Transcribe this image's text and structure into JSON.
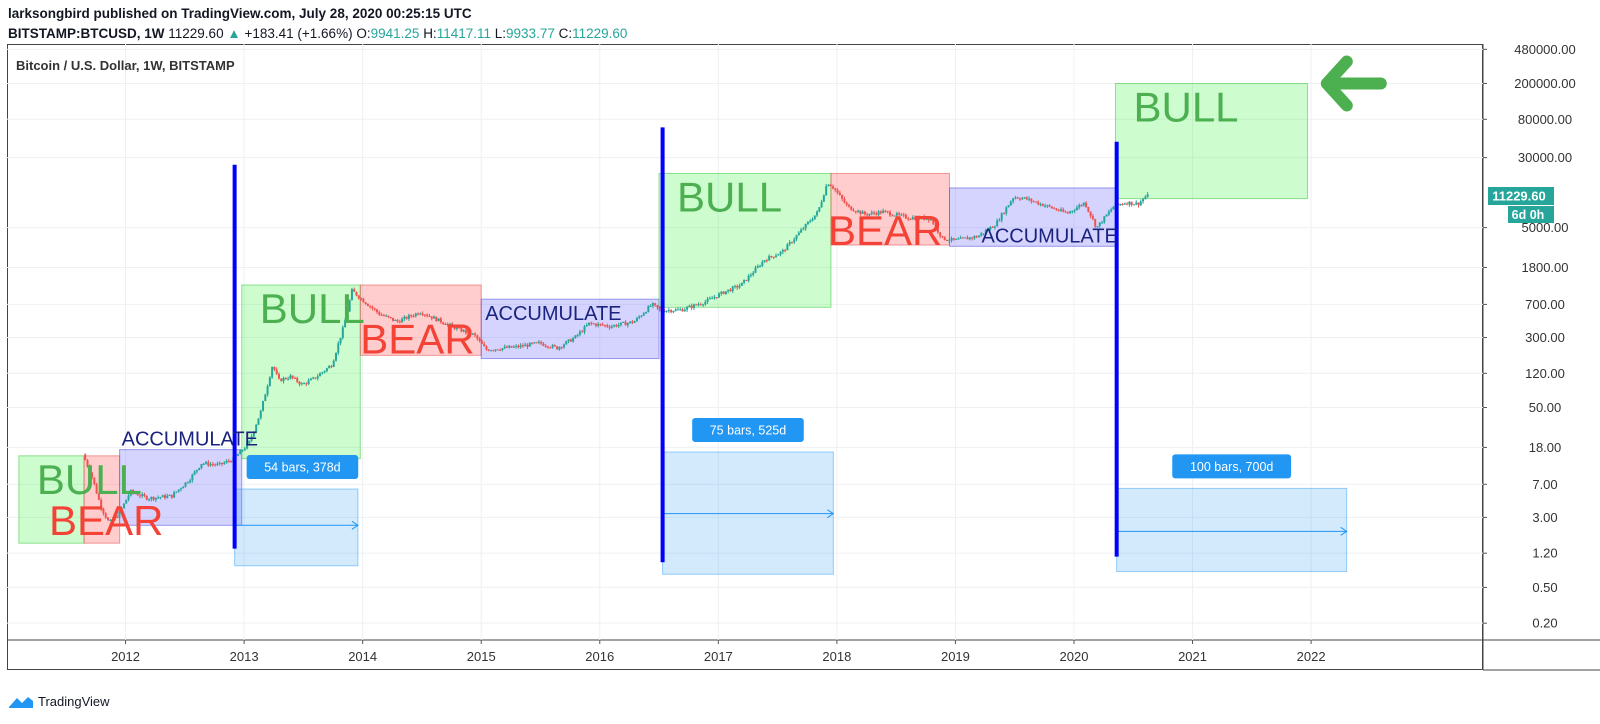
{
  "header": {
    "line1": "larksongbird published on TradingView.com, July 28, 2020 00:25:15 UTC",
    "symbol": "BITSTAMP:BTCUSD, 1W",
    "last": "11229.60",
    "change": "+183.41 (+1.66%)",
    "o_label": "O:",
    "o_value": "9941.25",
    "h_label": "H:",
    "h_value": "11417.11",
    "l_label": "L:",
    "l_value": "9933.77",
    "c_label": "C:",
    "c_value": "11229.60"
  },
  "footer": {
    "brand": "TradingView"
  },
  "colors": {
    "bull": "#4caf50",
    "bear": "#f44336",
    "accumulate": "#1a237e",
    "cycle_line": "#0000ff",
    "measure": "#2196f3",
    "price_badge": "#26a69a",
    "up_candle": "#26a69a",
    "down_candle": "#ef5350"
  },
  "chart_data": {
    "type": "candlestick",
    "title": "Bitcoin / U.S. Dollar, 1W, BITSTAMP",
    "x_axis": {
      "type": "time",
      "range": [
        2011.0,
        2023.45
      ],
      "ticks": [
        "2012",
        "2013",
        "2014",
        "2015",
        "2016",
        "2017",
        "2018",
        "2019",
        "2020",
        "2021",
        "2022"
      ]
    },
    "y_axis": {
      "scale": "log",
      "range": [
        0.13,
        550000
      ],
      "ticks": [
        "480000.00",
        "200000.00",
        "80000.00",
        "30000.00",
        "11229.60",
        "5000.00",
        "1800.00",
        "700.00",
        "300.00",
        "120.00",
        "50.00",
        "18.00",
        "7.00",
        "3.00",
        "1.20",
        "0.50",
        "0.20"
      ],
      "current_price_label": "11229.60",
      "countdown_label": "6d 0h"
    },
    "price_path": [
      [
        2011.65,
        15
      ],
      [
        2011.72,
        9
      ],
      [
        2011.8,
        4
      ],
      [
        2011.87,
        2.6
      ],
      [
        2011.95,
        3.2
      ],
      [
        2012.05,
        5.8
      ],
      [
        2012.2,
        4.9
      ],
      [
        2012.4,
        5.2
      ],
      [
        2012.55,
        8
      ],
      [
        2012.65,
        12
      ],
      [
        2012.8,
        11.5
      ],
      [
        2012.92,
        13.4
      ],
      [
        2013.05,
        20
      ],
      [
        2013.15,
        45
      ],
      [
        2013.25,
        150
      ],
      [
        2013.3,
        100
      ],
      [
        2013.4,
        110
      ],
      [
        2013.5,
        90
      ],
      [
        2013.6,
        105
      ],
      [
        2013.75,
        150
      ],
      [
        2013.85,
        400
      ],
      [
        2013.92,
        1000
      ],
      [
        2014.0,
        800
      ],
      [
        2014.15,
        550
      ],
      [
        2014.3,
        450
      ],
      [
        2014.5,
        580
      ],
      [
        2014.6,
        500
      ],
      [
        2014.8,
        380
      ],
      [
        2014.95,
        320
      ],
      [
        2015.05,
        220
      ],
      [
        2015.3,
        235
      ],
      [
        2015.5,
        260
      ],
      [
        2015.65,
        230
      ],
      [
        2015.8,
        300
      ],
      [
        2015.92,
        430
      ],
      [
        2016.1,
        400
      ],
      [
        2016.3,
        450
      ],
      [
        2016.45,
        700
      ],
      [
        2016.52,
        600
      ],
      [
        2016.7,
        610
      ],
      [
        2016.9,
        750
      ],
      [
        2017.05,
        950
      ],
      [
        2017.2,
        1150
      ],
      [
        2017.4,
        2200
      ],
      [
        2017.55,
        2700
      ],
      [
        2017.7,
        4500
      ],
      [
        2017.85,
        7500
      ],
      [
        2017.93,
        16000
      ],
      [
        2017.98,
        14000
      ],
      [
        2018.1,
        8500
      ],
      [
        2018.25,
        7000
      ],
      [
        2018.4,
        7500
      ],
      [
        2018.6,
        6500
      ],
      [
        2018.8,
        6300
      ],
      [
        2018.9,
        3800
      ],
      [
        2019.0,
        3600
      ],
      [
        2019.2,
        4000
      ],
      [
        2019.35,
        5500
      ],
      [
        2019.5,
        11000
      ],
      [
        2019.6,
        10500
      ],
      [
        2019.8,
        8500
      ],
      [
        2019.95,
        7200
      ],
      [
        2020.1,
        9500
      ],
      [
        2020.2,
        5000
      ],
      [
        2020.35,
        8800
      ],
      [
        2020.45,
        9500
      ],
      [
        2020.55,
        9200
      ],
      [
        2020.62,
        11229.6
      ]
    ],
    "phases": [
      {
        "label": "BULL",
        "kind": "bull",
        "x": [
          2011.1,
          2011.65
        ],
        "y": [
          1.55,
          14.5
        ]
      },
      {
        "label": "BEAR",
        "kind": "bear",
        "x": [
          2011.65,
          2011.95
        ],
        "y": [
          1.55,
          14.5
        ]
      },
      {
        "label": "ACCUMULATE",
        "kind": "accumulate",
        "x": [
          2011.95,
          2012.98
        ],
        "y": [
          2.45,
          17
        ]
      },
      {
        "label": "BULL",
        "kind": "bull",
        "x": [
          2012.98,
          2013.98
        ],
        "y": [
          13.5,
          1150
        ]
      },
      {
        "label": "BEAR",
        "kind": "bear",
        "x": [
          2013.98,
          2015.0
        ],
        "y": [
          190,
          1150
        ]
      },
      {
        "label": "ACCUMULATE",
        "kind": "accumulate",
        "x": [
          2015.0,
          2016.5
        ],
        "y": [
          175,
          800
        ]
      },
      {
        "label": "BULL",
        "kind": "bull",
        "x": [
          2016.5,
          2017.95
        ],
        "y": [
          650,
          20000
        ]
      },
      {
        "label": "BEAR",
        "kind": "bear",
        "x": [
          2017.95,
          2018.95
        ],
        "y": [
          3200,
          20000
        ]
      },
      {
        "label": "ACCUMULATE",
        "kind": "accumulate",
        "x": [
          2018.95,
          2020.35
        ],
        "y": [
          3100,
          13800
        ]
      },
      {
        "label": "BULL",
        "kind": "bull",
        "x": [
          2020.35,
          2021.97
        ],
        "y": [
          10500,
          200000
        ]
      }
    ],
    "cycle_lines": [
      {
        "x": 2012.92,
        "y": [
          1.35,
          25000
        ]
      },
      {
        "x": 2016.53,
        "y": [
          0.95,
          65000
        ]
      },
      {
        "x": 2020.36,
        "y": [
          1.1,
          45000
        ]
      }
    ],
    "measurements": [
      {
        "label": "54 bars, 378d",
        "x": [
          2012.92,
          2013.96
        ],
        "y": [
          0.87,
          6.2
        ],
        "arrow_y": 2.45
      },
      {
        "label": "75 bars, 525d",
        "x": [
          2016.53,
          2017.97
        ],
        "y": [
          0.7,
          16
        ],
        "arrow_y": 3.3
      },
      {
        "label": "100 bars, 700d",
        "x": [
          2020.36,
          2022.3
        ],
        "y": [
          0.75,
          6.3
        ],
        "arrow_y": 2.1
      }
    ],
    "annotations": [
      {
        "type": "arrow",
        "direction": "left",
        "color": "#4caf50",
        "x": 2022.2,
        "y": 200000
      }
    ]
  }
}
